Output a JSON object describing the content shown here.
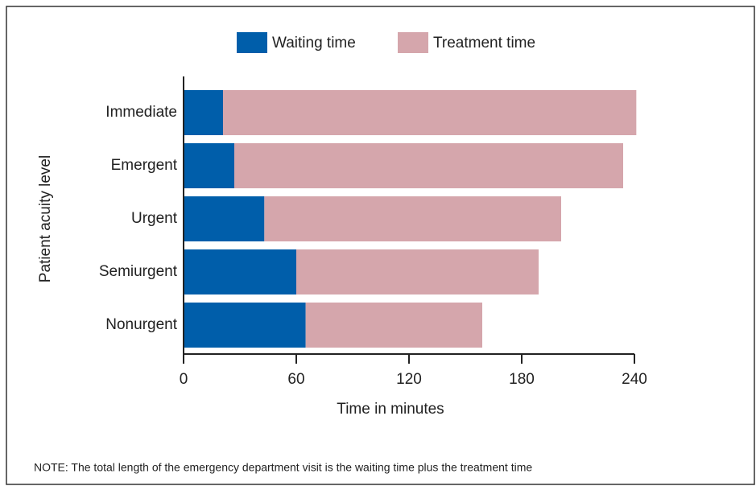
{
  "chart_data": {
    "type": "stacked-barh",
    "categories": [
      "Immediate",
      "Emergent",
      "Urgent",
      "Semiurgent",
      "Nonurgent"
    ],
    "series": [
      {
        "name": "Waiting time",
        "color": "#005eaa",
        "values": [
          21,
          27,
          43,
          60,
          65
        ]
      },
      {
        "name": "Treatment time",
        "color": "#d5a6ac",
        "values": [
          220,
          207,
          158,
          129,
          94
        ]
      }
    ],
    "xlim": [
      0,
      240
    ],
    "xticks": [
      0,
      60,
      120,
      180,
      240
    ],
    "xlabel": "Time in minutes",
    "ylabel": "Patient acuity level",
    "note": "NOTE: The total length of the emergency department visit is the waiting time plus the treatment time"
  }
}
